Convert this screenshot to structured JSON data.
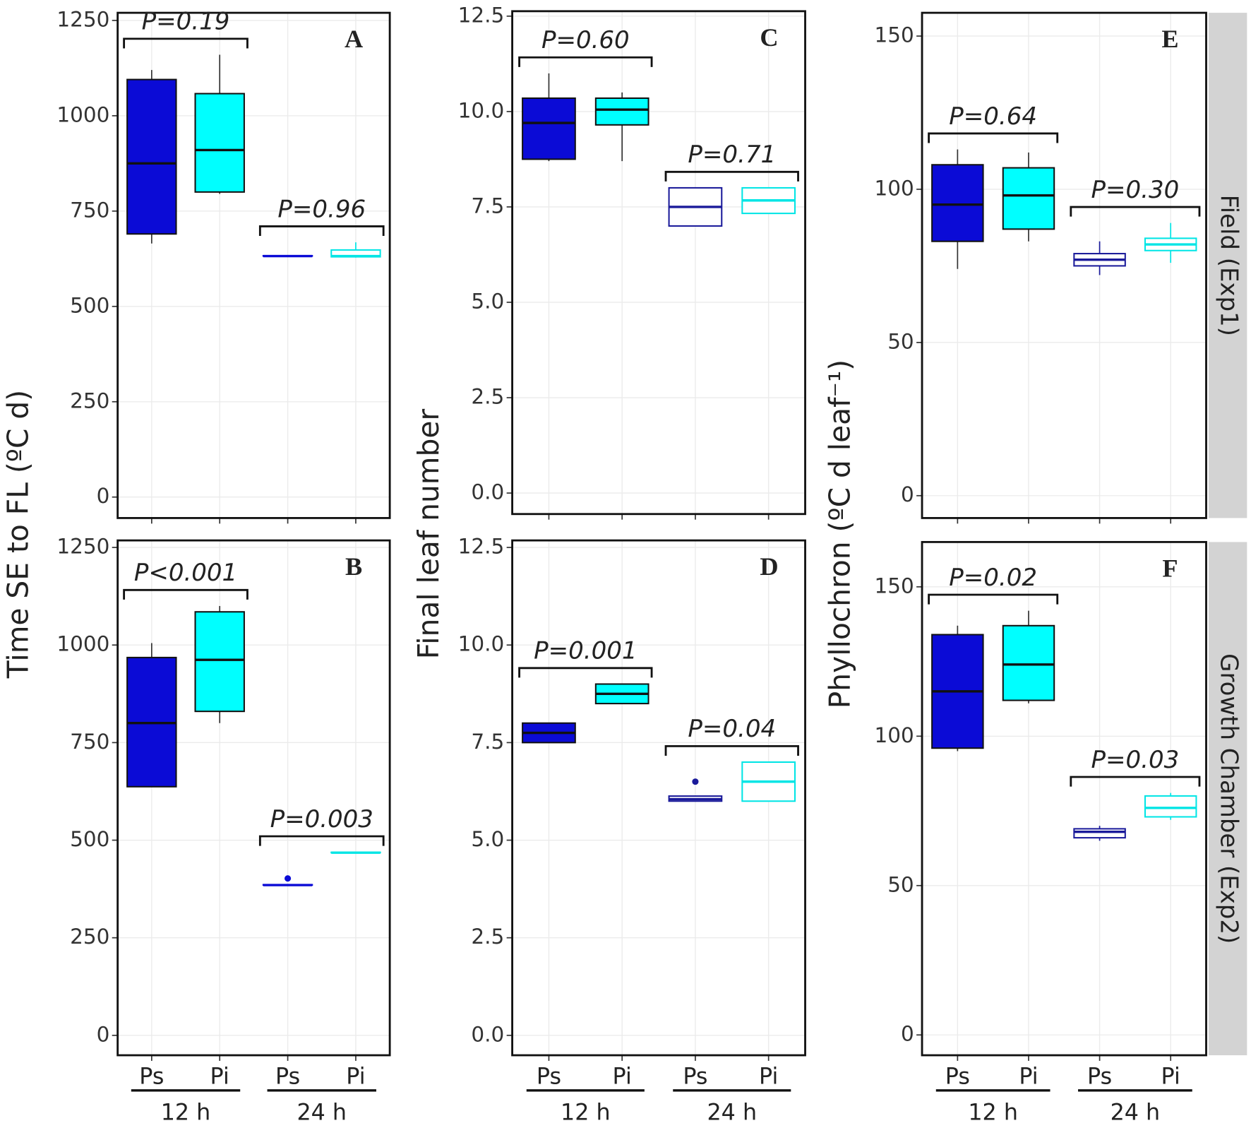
{
  "chart_data": [
    {
      "type": "box",
      "panel": "A",
      "y_label": "Time SE to FL (ºC d)",
      "strip": null,
      "categories": [
        null,
        null,
        null,
        null
      ],
      "ylim": [
        -55,
        1270
      ],
      "yticks": [
        0,
        250,
        500,
        750,
        1000,
        1250
      ],
      "grid": true,
      "boxes": [
        {
          "color": "#0b0bd6",
          "filled": true,
          "min": 665,
          "q1": 690,
          "median": 875,
          "q3": 1095,
          "max": 1120,
          "outliers": []
        },
        {
          "color": "#00ffff",
          "filled": true,
          "min": 795,
          "q1": 800,
          "median": 910,
          "q3": 1058,
          "max": 1160,
          "outliers": []
        },
        {
          "color": "#0b0bd6",
          "filled": false,
          "min": 632,
          "q1": 632,
          "median": 632,
          "q3": 633,
          "max": 633,
          "outliers": []
        },
        {
          "color": "#00e5e5",
          "filled": false,
          "min": 628,
          "q1": 630,
          "median": 632,
          "q3": 648,
          "max": 668,
          "outliers": []
        }
      ],
      "p_values": [
        "P=0.19",
        "P=0.96"
      ]
    },
    {
      "type": "box",
      "panel": "B",
      "strip": null,
      "categories": [
        "Ps",
        "Pi",
        "Ps",
        "Pi"
      ],
      "group_labels": [
        "12 h",
        "24 h"
      ],
      "ylim": [
        -51,
        1268
      ],
      "yticks": [
        0,
        250,
        500,
        750,
        1000,
        1250
      ],
      "grid": true,
      "boxes": [
        {
          "color": "#0b0bd6",
          "filled": true,
          "min": 637,
          "q1": 637,
          "median": 800,
          "q3": 968,
          "max": 1005,
          "outliers": []
        },
        {
          "color": "#00ffff",
          "filled": true,
          "min": 800,
          "q1": 830,
          "median": 962,
          "q3": 1085,
          "max": 1100,
          "outliers": []
        },
        {
          "color": "#0b0bd6",
          "filled": false,
          "min": 385,
          "q1": 385,
          "median": 385,
          "q3": 386,
          "max": 386,
          "outliers": [
            402
          ]
        },
        {
          "color": "#00e5e5",
          "filled": false,
          "min": 468,
          "q1": 468,
          "median": 468,
          "q3": 469,
          "max": 469,
          "outliers": []
        }
      ],
      "p_values": [
        "P<0.001",
        "P=0.003"
      ]
    },
    {
      "type": "box",
      "panel": "C",
      "y_label": "Final leaf number",
      "strip": null,
      "categories": [
        null,
        null,
        null,
        null
      ],
      "ylim": [
        -0.55,
        12.63
      ],
      "yticks": [
        {
          "value": 0,
          "label": "0.0"
        },
        2.5,
        {
          "value": 5,
          "label": "5.0"
        },
        7.5,
        {
          "value": 10,
          "label": "10.0"
        },
        12.5
      ],
      "grid": true,
      "boxes": [
        {
          "color": "#0b0bd6",
          "filled": true,
          "min": 8.7,
          "q1": 8.75,
          "median": 9.7,
          "q3": 10.35,
          "max": 11.0,
          "outliers": []
        },
        {
          "color": "#00ffff",
          "filled": true,
          "min": 8.7,
          "q1": 9.65,
          "median": 10.05,
          "q3": 10.35,
          "max": 10.5,
          "outliers": []
        },
        {
          "color": "#1a1a9a",
          "filled": false,
          "min": 7.0,
          "q1": 7.0,
          "median": 7.5,
          "q3": 8.0,
          "max": 8.0,
          "outliers": []
        },
        {
          "color": "#00e5e5",
          "filled": false,
          "min": 7.33,
          "q1": 7.33,
          "median": 7.67,
          "q3": 8.0,
          "max": 8.0,
          "outliers": []
        }
      ],
      "p_values": [
        "P=0.60",
        "P=0.71"
      ]
    },
    {
      "type": "box",
      "panel": "D",
      "strip": null,
      "categories": [
        "Ps",
        "Pi",
        "Ps",
        "Pi"
      ],
      "group_labels": [
        "12 h",
        "24 h"
      ],
      "ylim": [
        -0.51,
        12.68
      ],
      "yticks": [
        {
          "value": 0,
          "label": "0.0"
        },
        2.5,
        {
          "value": 5,
          "label": "5.0"
        },
        7.5,
        {
          "value": 10,
          "label": "10.0"
        },
        12.5
      ],
      "grid": true,
      "boxes": [
        {
          "color": "#0b0bd6",
          "filled": true,
          "min": 7.5,
          "q1": 7.5,
          "median": 7.75,
          "q3": 8.0,
          "max": 8.0,
          "outliers": []
        },
        {
          "color": "#00ffff",
          "filled": true,
          "min": 8.5,
          "q1": 8.5,
          "median": 8.75,
          "q3": 9.0,
          "max": 9.0,
          "outliers": []
        },
        {
          "color": "#1a1a9a",
          "filled": false,
          "min": 6.0,
          "q1": 6.0,
          "median": 6.05,
          "q3": 6.13,
          "max": 6.13,
          "outliers": [
            6.5
          ]
        },
        {
          "color": "#00e5e5",
          "filled": false,
          "min": 6.0,
          "q1": 6.0,
          "median": 6.5,
          "q3": 7.0,
          "max": 7.0,
          "outliers": []
        }
      ],
      "p_values": [
        "P=0.001",
        "P=0.04"
      ]
    },
    {
      "type": "box",
      "panel": "E",
      "y_label": "Phyllochron (ºC d leaf⁻¹)",
      "strip": "Field (Exp1)",
      "categories": [
        null,
        null,
        null,
        null
      ],
      "ylim": [
        -7.3,
        157.6
      ],
      "yticks": [
        0,
        50,
        100,
        150
      ],
      "grid": true,
      "boxes": [
        {
          "color": "#0b0bd6",
          "filled": true,
          "min": 74,
          "q1": 83,
          "median": 95,
          "q3": 108,
          "max": 113,
          "outliers": []
        },
        {
          "color": "#00ffff",
          "filled": true,
          "min": 83,
          "q1": 87,
          "median": 98,
          "q3": 107,
          "max": 112,
          "outliers": []
        },
        {
          "color": "#1a1a9a",
          "filled": false,
          "min": 72,
          "q1": 75,
          "median": 77,
          "q3": 79,
          "max": 83,
          "outliers": []
        },
        {
          "color": "#00e5e5",
          "filled": false,
          "min": 76,
          "q1": 80,
          "median": 82,
          "q3": 84,
          "max": 89,
          "outliers": []
        }
      ],
      "p_values": [
        "P=0.64",
        "P=0.30"
      ]
    },
    {
      "type": "box",
      "panel": "F",
      "strip": "Growth Chamber (Exp2)",
      "categories": [
        "Ps",
        "Pi",
        "Ps",
        "Pi"
      ],
      "group_labels": [
        "12 h",
        "24 h"
      ],
      "ylim": [
        -6.8,
        165
      ],
      "yticks": [
        0,
        50,
        100,
        150
      ],
      "grid": true,
      "boxes": [
        {
          "color": "#0b0bd6",
          "filled": true,
          "min": 95,
          "q1": 96,
          "median": 115,
          "q3": 134,
          "max": 137,
          "outliers": []
        },
        {
          "color": "#00ffff",
          "filled": true,
          "min": 111,
          "q1": 112,
          "median": 124,
          "q3": 137,
          "max": 142,
          "outliers": []
        },
        {
          "color": "#1a1a9a",
          "filled": false,
          "min": 65,
          "q1": 66,
          "median": 68,
          "q3": 69,
          "max": 70,
          "outliers": []
        },
        {
          "color": "#00e5e5",
          "filled": false,
          "min": 72,
          "q1": 73,
          "median": 76,
          "q3": 80,
          "max": 81,
          "outliers": []
        }
      ],
      "p_values": [
        "P=0.02",
        "P=0.03"
      ]
    }
  ]
}
